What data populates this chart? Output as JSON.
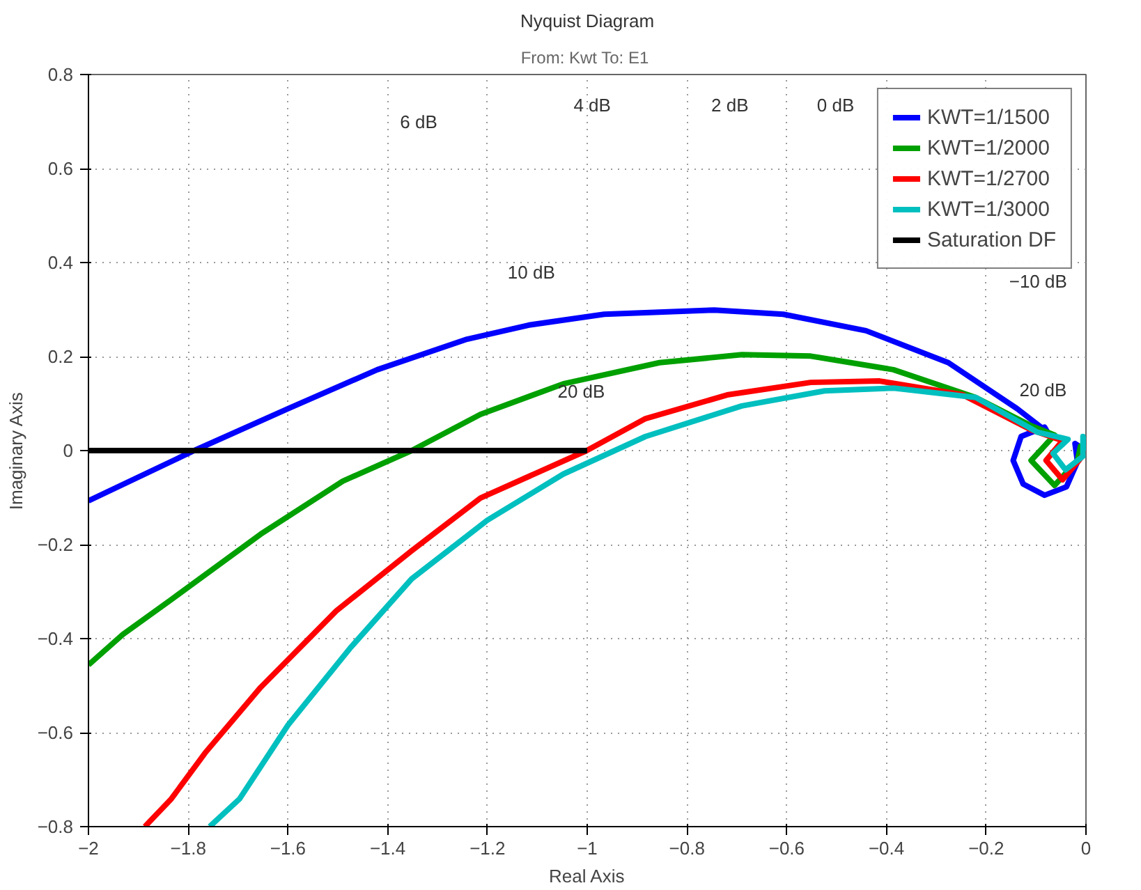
{
  "chart_data": {
    "type": "line",
    "title": "Nyquist Diagram",
    "subtitle": "From: Kwt  To: E1",
    "xlabel": "Real Axis",
    "ylabel": "Imaginary Axis",
    "xlim": [
      -2,
      0
    ],
    "ylim": [
      -0.8,
      0.8
    ],
    "xticks": [
      -2,
      -1.8,
      -1.6,
      -1.4,
      -1.2,
      -1,
      -0.8,
      -0.6,
      -0.4,
      -0.2,
      0
    ],
    "yticks": [
      -0.8,
      -0.6,
      -0.4,
      -0.2,
      0,
      0.2,
      0.4,
      0.6,
      0.8
    ],
    "grid": true,
    "legend": "top right",
    "line_style": "solid",
    "marker": "none",
    "series": [
      {
        "name": "KWT=1/1500",
        "color": "#0000ff",
        "x": [
          -2,
          -1.788,
          -1.6,
          -1.421,
          -1.241,
          -1.117,
          -0.966,
          -0.745,
          -0.607,
          -0.441,
          -0.276,
          -0.138,
          -0.077,
          -0.083,
          -0.13,
          -0.146,
          -0.126,
          -0.083,
          -0.039,
          -0.017,
          -0.022,
          0
        ],
        "values": [
          -0.107,
          0,
          0.089,
          0.172,
          0.237,
          0.267,
          0.29,
          0.299,
          0.29,
          0.255,
          0.187,
          0.089,
          0.039,
          0.05,
          0.03,
          -0.021,
          -0.071,
          -0.095,
          -0.077,
          -0.024,
          0.015,
          0
        ]
      },
      {
        "name": "KWT=1/2000",
        "color": "#00a000",
        "x": [
          -2,
          -1.931,
          -1.834,
          -1.655,
          -1.49,
          -1.352,
          -1.214,
          -1.048,
          -0.855,
          -0.69,
          -0.552,
          -0.386,
          -0.221,
          -0.11,
          -0.063,
          -0.11,
          -0.063,
          -0.017,
          -0.011,
          0
        ],
        "values": [
          -0.456,
          -0.391,
          -0.317,
          -0.178,
          -0.065,
          0,
          0.077,
          0.142,
          0.187,
          0.204,
          0.201,
          0.172,
          0.113,
          0.053,
          0.033,
          -0.021,
          -0.074,
          -0.021,
          0.009,
          0
        ]
      },
      {
        "name": "KWT=1/2700",
        "color": "#ff0000",
        "x": [
          -1.887,
          -1.834,
          -1.766,
          -1.655,
          -1.503,
          -1.352,
          -1.214,
          -1.001,
          -0.883,
          -0.717,
          -0.552,
          -0.414,
          -0.248,
          -0.11,
          -0.047,
          -0.08,
          -0.047,
          -0.014,
          0
        ],
        "values": [
          -0.8,
          -0.741,
          -0.643,
          -0.504,
          -0.341,
          -0.213,
          -0.101,
          0,
          0.068,
          0.119,
          0.145,
          0.148,
          0.119,
          0.044,
          0.021,
          -0.021,
          -0.062,
          -0.021,
          0
        ]
      },
      {
        "name": "KWT=1/3000",
        "color": "#00bfbf",
        "x": [
          -1.757,
          -1.697,
          -1.6,
          -1.476,
          -1.352,
          -1.2,
          -1.048,
          -0.883,
          -0.69,
          -0.524,
          -0.386,
          -0.221,
          -0.097,
          -0.036,
          -0.066,
          -0.041,
          -0.006,
          -0.006,
          0
        ],
        "values": [
          -0.8,
          -0.741,
          -0.584,
          -0.421,
          -0.273,
          -0.148,
          -0.05,
          0.03,
          0.095,
          0.127,
          0.133,
          0.113,
          0.039,
          0.024,
          -0.006,
          -0.041,
          -0.012,
          0.03,
          0
        ]
      },
      {
        "name": "Saturation DF",
        "color": "#000000",
        "x": [
          -2,
          -1
        ],
        "values": [
          0,
          0
        ]
      }
    ],
    "annotations": [
      "6 dB",
      "4 dB",
      "2 dB",
      "0 dB",
      "10 dB",
      "20 dB",
      "−10 dB",
      "20 dB"
    ]
  }
}
